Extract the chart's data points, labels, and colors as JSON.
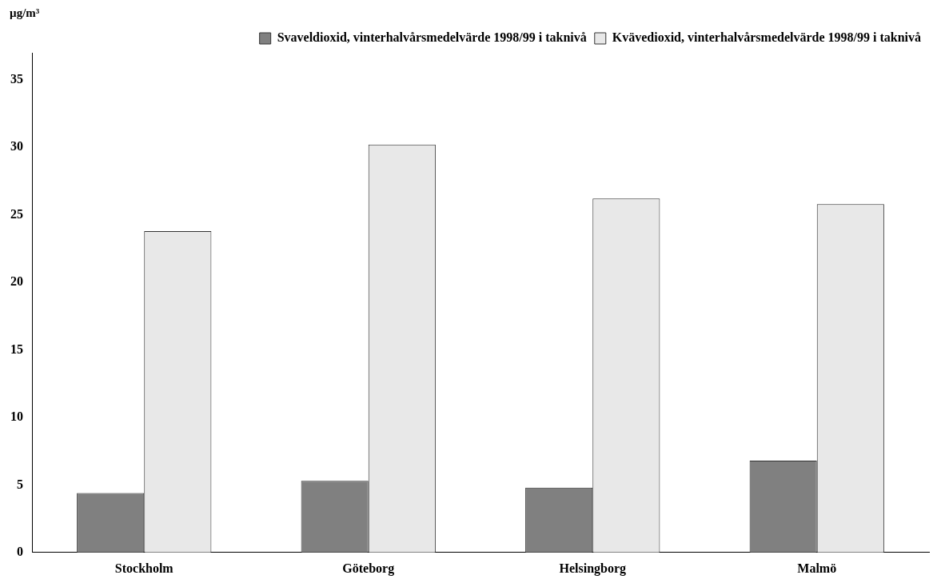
{
  "chart_data": {
    "type": "bar",
    "ylabel": "µg/m³",
    "categories": [
      "Stockholm",
      "Göteborg",
      "Helsingborg",
      "Malmö"
    ],
    "series": [
      {
        "name": "Svaveldioxid, vinterhalvårsmedelvärde 1998/99 i taknivå",
        "color": "#808080",
        "values": [
          4.4,
          5.3,
          4.8,
          6.8
        ]
      },
      {
        "name": "Kvävedioxid, vinterhalvårsmedelvärde 1998/99 i taknivå",
        "color": "#e8e8e8",
        "values": [
          23.8,
          30.2,
          26.2,
          25.8
        ]
      }
    ],
    "ylim": [
      0,
      37
    ],
    "yticks": [
      0,
      5,
      10,
      15,
      20,
      25,
      30,
      35
    ],
    "grid": false,
    "legend": "top right"
  }
}
